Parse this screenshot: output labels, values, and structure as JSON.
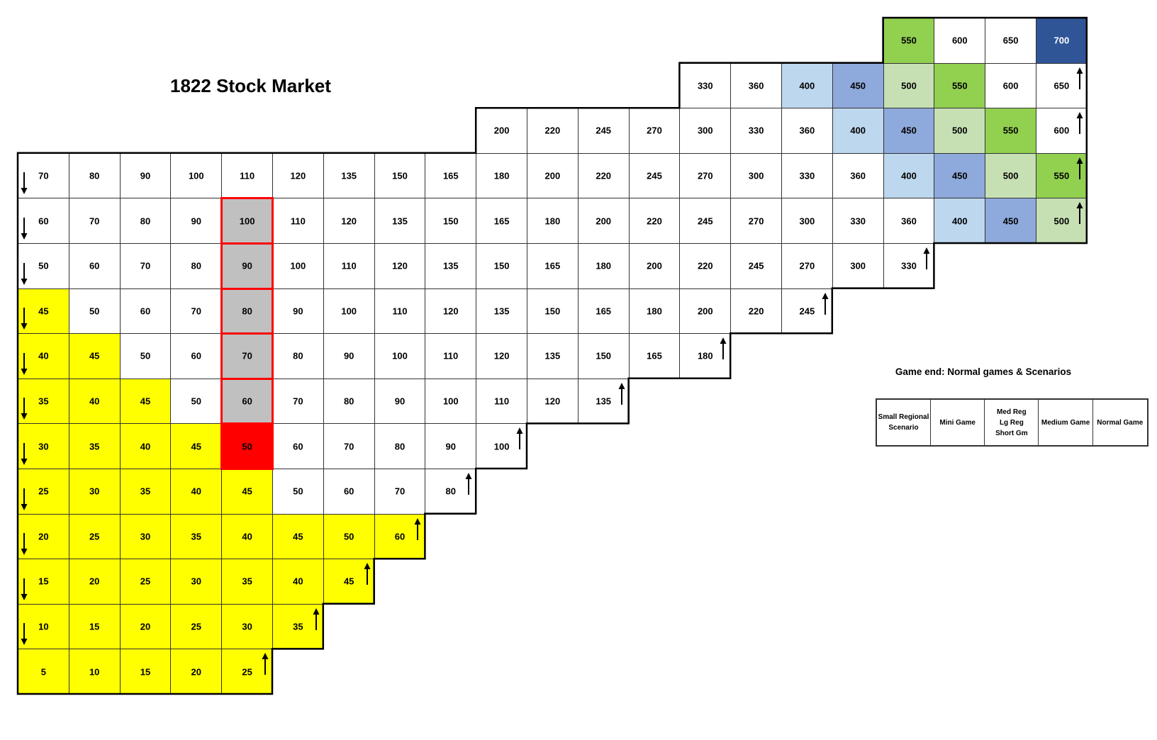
{
  "title": "1822 Stock Market",
  "rows": [
    {
      "start": 17,
      "cells": [
        "550",
        "600",
        "650",
        "700"
      ],
      "arrow_end": false
    },
    {
      "start": 13,
      "cells": [
        "330",
        "360",
        "400",
        "450",
        "500",
        "550",
        "600",
        "650"
      ],
      "arrow_end": true
    },
    {
      "start": 9,
      "cells": [
        "200",
        "220",
        "245",
        "270",
        "300",
        "330",
        "360",
        "400",
        "450",
        "500",
        "550",
        "600"
      ],
      "arrow_end": true
    },
    {
      "start": 0,
      "cells": [
        "70",
        "80",
        "90",
        "100",
        "110",
        "120",
        "135",
        "150",
        "165",
        "180",
        "200",
        "220",
        "245",
        "270",
        "300",
        "330",
        "360",
        "400",
        "450",
        "500",
        "550"
      ],
      "arrow_end": true,
      "arrow_start": true
    },
    {
      "start": 0,
      "cells": [
        "60",
        "70",
        "80",
        "90",
        "100",
        "110",
        "120",
        "135",
        "150",
        "165",
        "180",
        "200",
        "220",
        "245",
        "270",
        "300",
        "330",
        "360",
        "400",
        "450",
        "500"
      ],
      "arrow_end": true,
      "arrow_start": true
    },
    {
      "start": 0,
      "cells": [
        "50",
        "60",
        "70",
        "80",
        "90",
        "100",
        "110",
        "120",
        "135",
        "150",
        "165",
        "180",
        "200",
        "220",
        "245",
        "270",
        "300",
        "330"
      ],
      "arrow_end": true,
      "arrow_start": true
    },
    {
      "start": 0,
      "cells": [
        "45",
        "50",
        "60",
        "70",
        "80",
        "90",
        "100",
        "110",
        "120",
        "135",
        "150",
        "165",
        "180",
        "200",
        "220",
        "245"
      ],
      "arrow_end": true,
      "arrow_start": true
    },
    {
      "start": 0,
      "cells": [
        "40",
        "45",
        "50",
        "60",
        "70",
        "80",
        "90",
        "100",
        "110",
        "120",
        "135",
        "150",
        "165",
        "180"
      ],
      "arrow_end": true,
      "arrow_start": true
    },
    {
      "start": 0,
      "cells": [
        "35",
        "40",
        "45",
        "50",
        "60",
        "70",
        "80",
        "90",
        "100",
        "110",
        "120",
        "135"
      ],
      "arrow_end": true,
      "arrow_start": true
    },
    {
      "start": 0,
      "cells": [
        "30",
        "35",
        "40",
        "45",
        "50",
        "60",
        "70",
        "80",
        "90",
        "100"
      ],
      "arrow_end": true,
      "arrow_start": true
    },
    {
      "start": 0,
      "cells": [
        "25",
        "30",
        "35",
        "40",
        "45",
        "50",
        "60",
        "70",
        "80"
      ],
      "arrow_end": true,
      "arrow_start": true
    },
    {
      "start": 0,
      "cells": [
        "20",
        "25",
        "30",
        "35",
        "40",
        "45",
        "50",
        "60"
      ],
      "arrow_end": true,
      "arrow_start": true
    },
    {
      "start": 0,
      "cells": [
        "15",
        "20",
        "25",
        "30",
        "35",
        "40",
        "45"
      ],
      "arrow_end": true,
      "arrow_start": true
    },
    {
      "start": 0,
      "cells": [
        "10",
        "15",
        "20",
        "25",
        "30",
        "35"
      ],
      "arrow_end": true,
      "arrow_start": true
    },
    {
      "start": 0,
      "cells": [
        "5",
        "10",
        "15",
        "20",
        "25"
      ],
      "arrow_end": true,
      "arrow_start": false
    }
  ],
  "colors": {
    "yellow": "#ffff00",
    "par_grey": "#c0c0c0",
    "par_red": "#ff0000",
    "small_regional": "#bdd7ee",
    "mini_game": "#8ea9db",
    "med_reg": "#c6e0b4",
    "medium_game": "#92d050",
    "normal_game": "#2f5597"
  },
  "cell_colors": {
    "0": {
      "17": "c-g",
      "20": "c-db"
    },
    "1": {
      "15": "c-lb",
      "16": "c-mb",
      "17": "c-lg",
      "18": "c-g"
    },
    "2": {
      "16": "c-lb",
      "17": "c-mb",
      "18": "c-lg",
      "19": "c-g"
    },
    "3": {
      "17": "c-lb",
      "18": "c-mb",
      "19": "c-lg",
      "20": "c-g"
    },
    "4": {
      "4": "grey",
      "18": "c-lb",
      "19": "c-mb",
      "20": "c-lg"
    },
    "5": {
      "4": "grey"
    },
    "6": {
      "0": "yellow",
      "4": "grey"
    },
    "7": {
      "0": "yellow",
      "1": "yellow",
      "4": "grey"
    },
    "8": {
      "0": "yellow",
      "1": "yellow",
      "2": "yellow",
      "4": "grey"
    },
    "9": {
      "0": "yellow",
      "1": "yellow",
      "2": "yellow",
      "3": "yellow",
      "4": "red"
    },
    "10": {
      "0": "yellow",
      "1": "yellow",
      "2": "yellow",
      "3": "yellow",
      "4": "yellow"
    },
    "11": {
      "0": "yellow",
      "1": "yellow",
      "2": "yellow",
      "3": "yellow",
      "4": "yellow",
      "5": "yellow",
      "6": "yellow",
      "7": "yellow"
    },
    "12": {
      "0": "yellow",
      "1": "yellow",
      "2": "yellow",
      "3": "yellow",
      "4": "yellow",
      "5": "yellow",
      "6": "yellow"
    },
    "13": {
      "0": "yellow",
      "1": "yellow",
      "2": "yellow",
      "3": "yellow",
      "4": "yellow",
      "5": "yellow"
    },
    "14": {
      "0": "yellow",
      "1": "yellow",
      "2": "yellow",
      "3": "yellow",
      "4": "yellow"
    }
  },
  "par_column": 4,
  "par_rows": [
    4,
    5,
    6,
    7,
    8,
    9
  ],
  "game_end": {
    "title": "Game end: Normal games & Scenarios",
    "legend": [
      {
        "label": "Small Regional\nScenario",
        "class": "c-lb"
      },
      {
        "label": "Mini Game",
        "class": "c-mb"
      },
      {
        "label": "Med Reg\nLg Reg\nShort Gm",
        "class": "c-lg"
      },
      {
        "label": "Medium Game",
        "class": "c-g"
      },
      {
        "label": "Normal Game",
        "class": "c-db"
      }
    ]
  }
}
